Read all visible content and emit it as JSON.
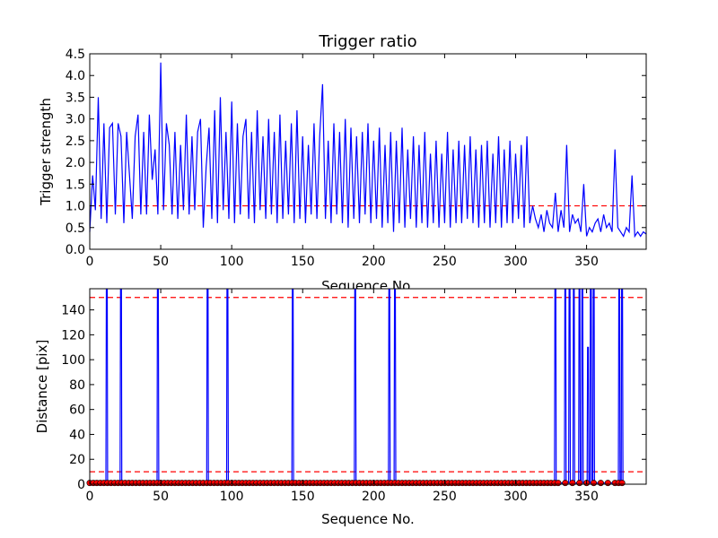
{
  "chart_data": [
    {
      "type": "line",
      "title": "Trigger ratio",
      "xlabel": "Sequence No.",
      "ylabel": "Trigger strength",
      "xlim": [
        0,
        392
      ],
      "ylim": [
        0.0,
        4.5
      ],
      "xticks": [
        0,
        50,
        100,
        150,
        200,
        250,
        300,
        350
      ],
      "yticks": [
        "0.0",
        "0.5",
        "1.0",
        "1.5",
        "2.0",
        "2.5",
        "3.0",
        "3.5",
        "4.0",
        "4.5"
      ],
      "line_color": "#0000ff",
      "threshold": {
        "value": 1.0,
        "color": "#ff0000",
        "style": "dashed"
      },
      "series": [
        {
          "x": [
            0,
            2,
            4,
            6,
            8,
            10,
            12,
            14,
            16,
            18,
            20,
            22,
            24,
            26,
            28,
            30,
            32,
            34,
            36,
            38,
            40,
            42,
            44,
            46,
            48,
            50,
            52,
            54,
            56,
            58,
            60,
            62,
            64,
            66,
            68,
            70,
            72,
            74,
            76,
            78,
            80,
            82,
            84,
            86,
            88,
            90,
            92,
            94,
            96,
            98,
            100,
            102,
            104,
            106,
            108,
            110,
            112,
            114,
            116,
            118,
            120,
            122,
            124,
            126,
            128,
            130,
            132,
            134,
            136,
            138,
            140,
            142,
            144,
            146,
            148,
            150,
            152,
            154,
            156,
            158,
            160,
            162,
            164,
            166,
            168,
            170,
            172,
            174,
            176,
            178,
            180,
            182,
            184,
            186,
            188,
            190,
            192,
            194,
            196,
            198,
            200,
            202,
            204,
            206,
            208,
            210,
            212,
            214,
            216,
            218,
            220,
            222,
            224,
            226,
            228,
            230,
            232,
            234,
            236,
            238,
            240,
            242,
            244,
            246,
            248,
            250,
            252,
            254,
            256,
            258,
            260,
            262,
            264,
            266,
            268,
            270,
            272,
            274,
            276,
            278,
            280,
            282,
            284,
            286,
            288,
            290,
            292,
            294,
            296,
            298,
            300,
            302,
            304,
            306,
            308,
            310,
            312,
            314,
            316,
            318,
            320,
            322,
            324,
            326,
            328,
            330,
            332,
            334,
            336,
            338,
            340,
            342,
            344,
            346,
            348,
            350,
            352,
            354,
            356,
            358,
            360,
            362,
            364,
            366,
            368,
            370,
            372,
            374,
            376,
            378,
            380,
            382,
            384,
            386,
            388,
            390,
            392
          ],
          "values": [
            0.4,
            1.7,
            0.9,
            3.5,
            0.7,
            2.9,
            0.6,
            2.8,
            2.9,
            0.8,
            2.9,
            2.6,
            0.6,
            2.7,
            1.7,
            0.7,
            2.6,
            3.1,
            0.8,
            2.7,
            0.8,
            3.1,
            1.6,
            2.3,
            0.8,
            4.3,
            0.9,
            2.9,
            2.4,
            0.8,
            2.7,
            0.7,
            2.4,
            0.9,
            3.1,
            0.8,
            2.6,
            0.9,
            2.7,
            3.0,
            0.5,
            1.9,
            2.8,
            0.7,
            3.2,
            0.6,
            3.5,
            0.9,
            2.7,
            0.7,
            3.4,
            0.6,
            2.9,
            0.8,
            2.6,
            3.0,
            0.7,
            2.7,
            0.6,
            3.2,
            0.9,
            2.6,
            0.7,
            3.0,
            0.8,
            2.7,
            0.6,
            3.1,
            0.7,
            2.5,
            0.8,
            2.9,
            0.6,
            3.2,
            0.7,
            2.6,
            0.6,
            2.4,
            0.8,
            2.9,
            0.7,
            2.6,
            3.8,
            0.7,
            2.5,
            0.6,
            2.9,
            0.8,
            2.7,
            0.6,
            3.0,
            0.5,
            2.8,
            0.7,
            2.6,
            0.6,
            2.7,
            0.8,
            2.9,
            0.6,
            2.5,
            0.7,
            2.8,
            0.5,
            2.4,
            0.6,
            2.7,
            0.4,
            2.5,
            0.6,
            2.8,
            0.5,
            2.3,
            0.7,
            2.6,
            0.5,
            2.4,
            0.6,
            2.7,
            0.5,
            2.2,
            0.6,
            2.5,
            0.5,
            2.2,
            0.6,
            2.7,
            0.5,
            2.3,
            0.6,
            2.5,
            0.6,
            2.4,
            0.7,
            2.6,
            0.6,
            2.3,
            0.5,
            2.4,
            0.6,
            2.5,
            0.5,
            2.2,
            0.6,
            2.6,
            0.5,
            2.3,
            0.6,
            2.5,
            0.6,
            2.2,
            0.7,
            2.4,
            0.5,
            2.6,
            0.6,
            1.0,
            0.7,
            0.5,
            0.8,
            0.4,
            0.9,
            0.6,
            0.5,
            1.3,
            0.4,
            0.9,
            0.5,
            2.4,
            0.4,
            0.8,
            0.6,
            0.7,
            0.4,
            1.5,
            0.3,
            0.5,
            0.4,
            0.6,
            0.7,
            0.4,
            0.8,
            0.5,
            0.6,
            0.4,
            2.3,
            0.5,
            0.4,
            0.3,
            0.5,
            0.4,
            1.7,
            0.3,
            0.4,
            0.3,
            0.4,
            0.35
          ]
        }
      ]
    },
    {
      "type": "line",
      "title": "",
      "xlabel": "Sequence No.",
      "ylabel": "Distance [pix]",
      "xlim": [
        0,
        392
      ],
      "ylim": [
        0,
        157
      ],
      "xticks": [
        0,
        50,
        100,
        150,
        200,
        250,
        300,
        350
      ],
      "yticks": [
        0,
        20,
        40,
        60,
        80,
        100,
        120,
        140
      ],
      "line_color": "#0000ff",
      "marker_color": "#ff0000",
      "thresholds": [
        {
          "value": 10,
          "color": "#ff0000",
          "style": "dashed"
        },
        {
          "value": 150,
          "color": "#ff0000",
          "style": "dashed"
        }
      ],
      "spikes_x": [
        12,
        22,
        48,
        83,
        97,
        143,
        187,
        211,
        215,
        328,
        335,
        338,
        341,
        345,
        347,
        353,
        355,
        373,
        375
      ],
      "spike_value": 157,
      "extra_spike": {
        "x": 351,
        "value": 110
      },
      "base_value": 1,
      "marker_x_start": 0,
      "marker_x_end": 375,
      "marker_step": 2.5
    }
  ]
}
